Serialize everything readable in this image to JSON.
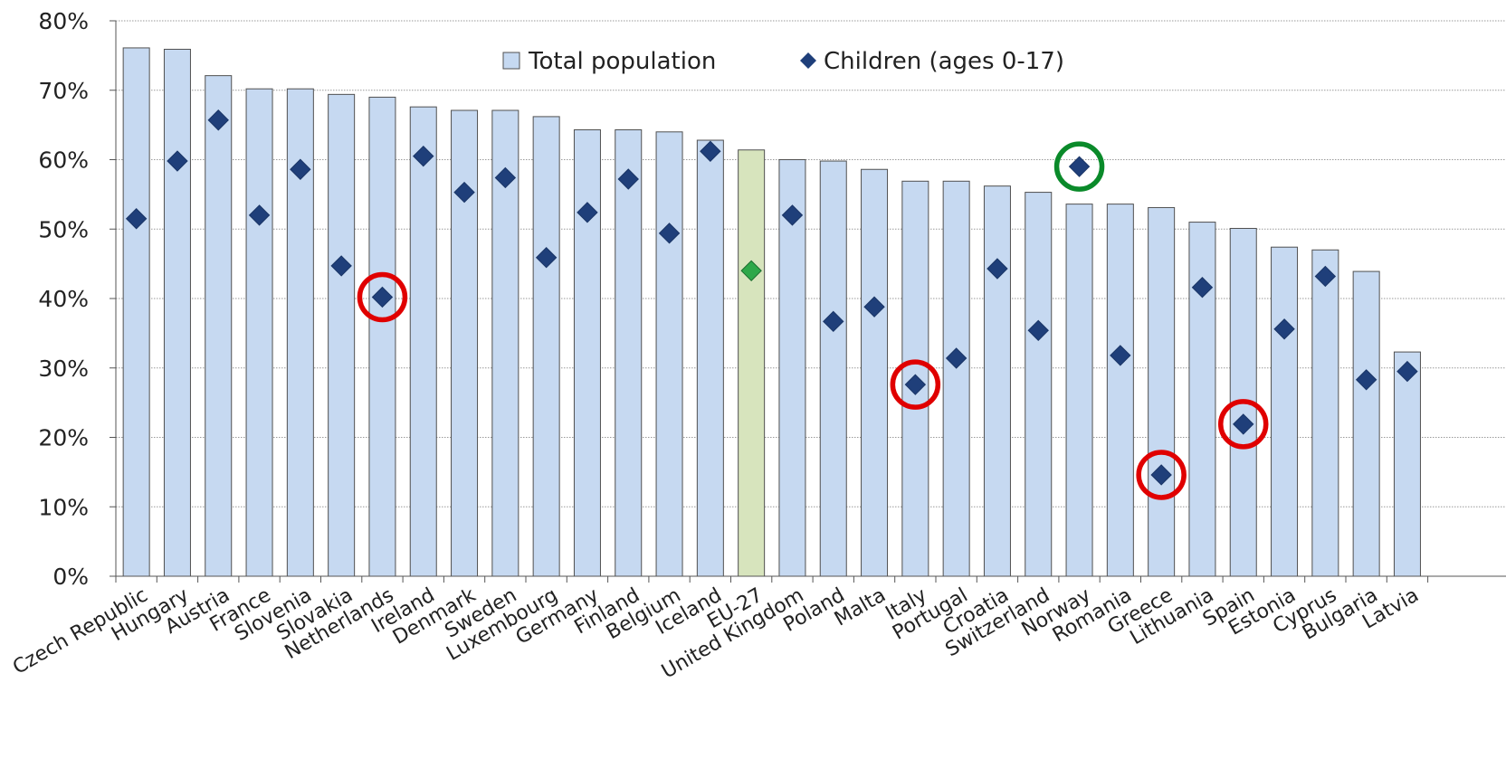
{
  "chart_data": {
    "type": "bar",
    "title": "",
    "xlabel": "",
    "ylabel": "",
    "ylim": [
      0,
      80
    ],
    "yticks": [
      "0%",
      "10%",
      "20%",
      "30%",
      "40%",
      "50%",
      "60%",
      "70%",
      "80%"
    ],
    "grid": true,
    "legend_position": "top",
    "categories": [
      "Czech Republic",
      "Hungary",
      "Austria",
      "France",
      "Slovenia",
      "Slovakia",
      "Netherlands",
      "Ireland",
      "Denmark",
      "Sweden",
      "Luxembourg",
      "Germany",
      "Finland",
      "Belgium",
      "Iceland",
      "EU-27",
      "United Kingdom",
      "Poland",
      "Malta",
      "Italy",
      "Portugal",
      "Croatia",
      "Switzerland",
      "Norway",
      "Romania",
      "Greece",
      "Lithuania",
      "Spain",
      "Estonia",
      "Cyprus",
      "Bulgaria",
      "Latvia"
    ],
    "series": [
      {
        "name": "Total population",
        "kind": "bar",
        "values": [
          76.1,
          75.9,
          72.1,
          70.2,
          70.2,
          69.4,
          69.0,
          67.6,
          67.1,
          67.1,
          66.2,
          64.3,
          64.3,
          64.0,
          62.8,
          61.4,
          60.0,
          59.8,
          58.6,
          56.9,
          56.9,
          56.2,
          55.3,
          53.6,
          53.6,
          53.1,
          51.0,
          50.1,
          47.4,
          47.0,
          43.9,
          32.3
        ]
      },
      {
        "name": "Children (ages 0-17)",
        "kind": "marker",
        "values": [
          51.5,
          59.8,
          65.7,
          52.0,
          58.6,
          44.7,
          40.2,
          60.5,
          55.3,
          57.4,
          45.9,
          52.4,
          57.2,
          49.4,
          61.2,
          44.0,
          52.0,
          36.7,
          38.8,
          27.6,
          31.4,
          44.3,
          35.4,
          59.0,
          31.8,
          14.6,
          41.6,
          21.9,
          35.6,
          43.2,
          28.3,
          29.5
        ]
      }
    ],
    "highlight_color": "#d7e4bd",
    "highlight_marker_color": "#2ea84a",
    "bar_color": "#c6d9f1",
    "marker_color": "#1f3f7a",
    "annotations": {
      "red_circles": [
        "Netherlands",
        "Italy",
        "Greece",
        "Spain"
      ],
      "green_circles": [
        "Norway"
      ],
      "red_color": "#e00000",
      "green_color": "#0a8a2a"
    }
  }
}
